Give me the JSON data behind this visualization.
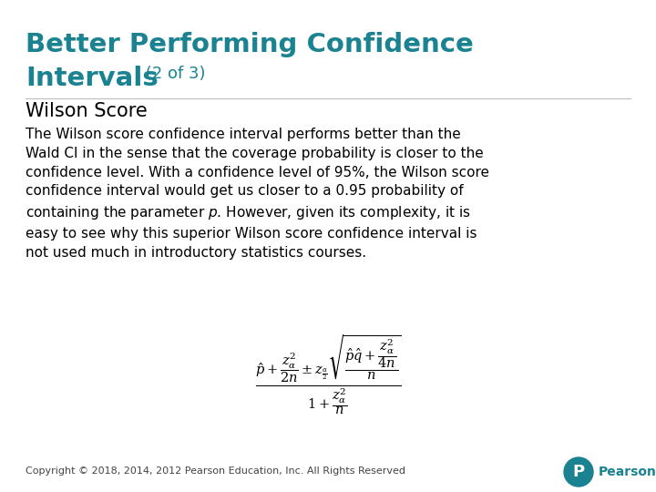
{
  "title_line1": "Better Performing Confidence",
  "title_line2": "Intervals",
  "title_suffix": " (2 of 3)",
  "subtitle": "Wilson Score",
  "body_text_line1": "The Wilson score confidence interval performs better than the",
  "body_text_line2": "Wald CI in the sense that the coverage probability is closer to the",
  "body_text_line3": "confidence level. With a confidence level of 95%, the Wilson score",
  "body_text_line4": "confidence interval would get us closer to a 0.95 probability of",
  "body_text_line5": "containing the parameter $p$. However, given its complexity, it is",
  "body_text_line6": "easy to see why this superior Wilson score confidence interval is",
  "body_text_line7": "not used much in introductory statistics courses.",
  "copyright_text": "Copyright © 2018, 2014, 2012 Pearson Education, Inc. All Rights Reserved",
  "title_color": "#1a8291",
  "subtitle_color": "#000000",
  "body_color": "#000000",
  "bg_color": "#ffffff",
  "pearson_logo_color": "#1a8291"
}
